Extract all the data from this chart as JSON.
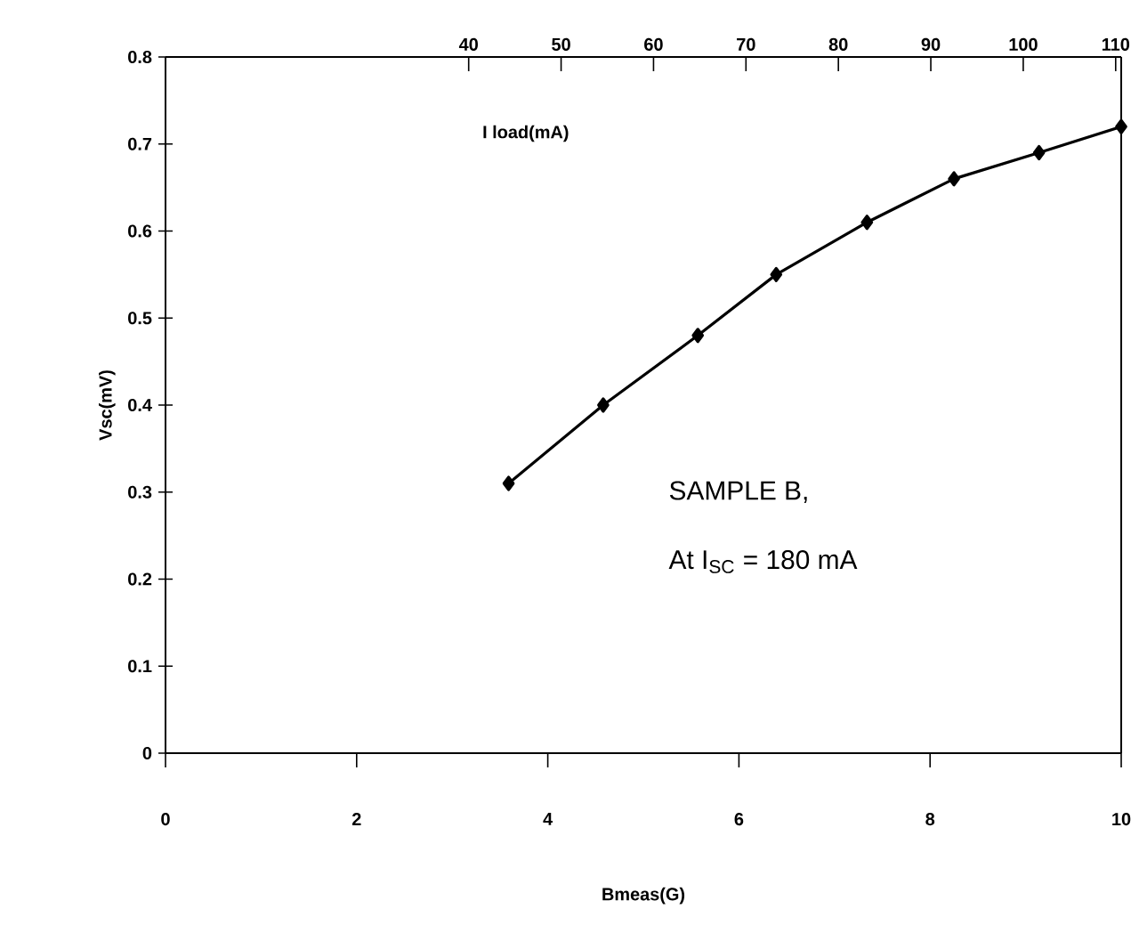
{
  "chart_data": {
    "type": "line",
    "xlabel": "Bmeas(G)",
    "ylabel": "Vsc(mV)",
    "x2label": "I load(mA)",
    "annotations": [
      "SAMPLE B,",
      "At I$_{SC}$ = 180 mA"
    ],
    "x": [
      3.59,
      4.58,
      5.57,
      6.39,
      7.34,
      8.25,
      9.14,
      10
    ],
    "series": [
      {
        "color": "#000000",
        "values": [
          0.31,
          0.4,
          0.48,
          0.55,
          0.61,
          0.66,
          0.69,
          0.72
        ]
      }
    ],
    "xlim": [
      0,
      10
    ],
    "xticks": [
      0,
      2,
      4,
      6,
      8,
      10
    ],
    "ylim": [
      0,
      0.8
    ],
    "yticks": [
      0,
      0.1,
      0.2,
      0.3,
      0.4,
      0.5,
      0.6,
      0.7,
      0.8
    ],
    "x2lim": [
      7.2,
      110.6
    ],
    "x2ticks": [
      40,
      50,
      60,
      70,
      80,
      90,
      100,
      110
    ],
    "marker": "diamond",
    "line_style": "solid",
    "grid": false
  }
}
